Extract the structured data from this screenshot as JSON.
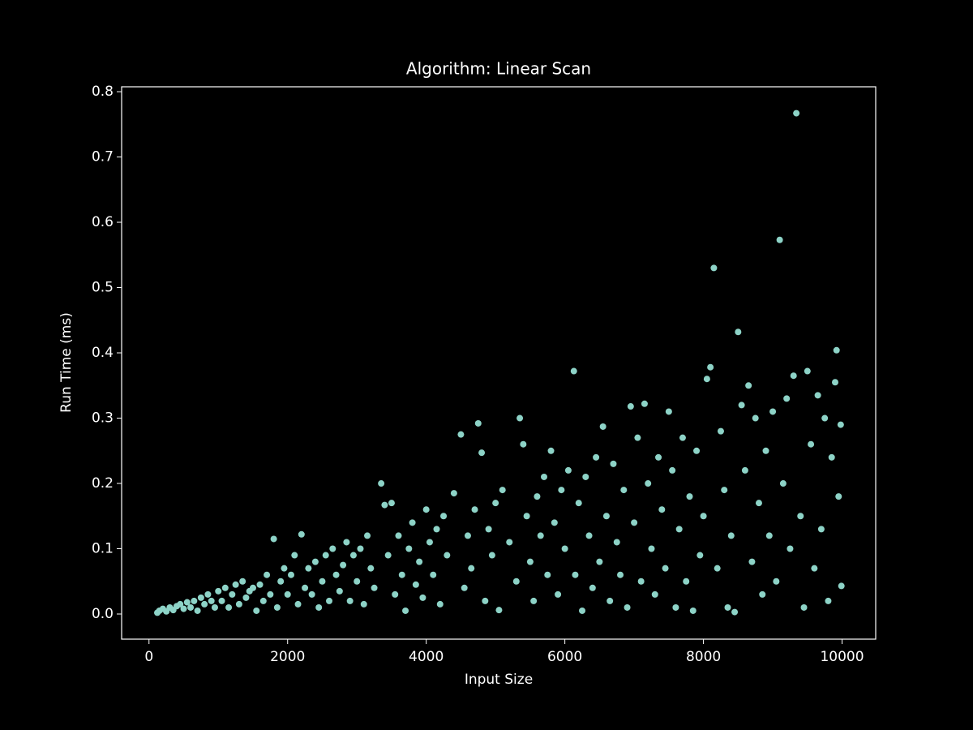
{
  "chart_data": {
    "type": "scatter",
    "title": "Algorithm: Linear Scan",
    "x_label": "Input Size",
    "y_label": "Run Time (ms)",
    "color": "#8dd3c7",
    "xlim": [
      -395,
      10485
    ],
    "ylim": [
      -0.0385,
      0.8075
    ],
    "xticks": [
      0,
      2000,
      4000,
      6000,
      8000,
      10000
    ],
    "yticks": [
      {
        "value": 0,
        "label": "0.0"
      },
      0.1,
      0.2,
      0.3,
      0.4,
      0.5,
      0.6,
      0.7,
      0.8
    ],
    "x": [
      120,
      150,
      200,
      250,
      300,
      350,
      400,
      450,
      500,
      550,
      600,
      650,
      700,
      750,
      800,
      850,
      900,
      950,
      1000,
      1050,
      1100,
      1150,
      1200,
      1250,
      1300,
      1350,
      1400,
      1450,
      1500,
      1550,
      1600,
      1650,
      1700,
      1750,
      1800,
      1850,
      1900,
      1950,
      2000,
      2050,
      2100,
      2150,
      2200,
      2250,
      2300,
      2350,
      2400,
      2450,
      2500,
      2550,
      2600,
      2650,
      2700,
      2750,
      2800,
      2850,
      2900,
      2950,
      3000,
      3050,
      3100,
      3150,
      3200,
      3250,
      3350,
      3400,
      3450,
      3500,
      3550,
      3600,
      3650,
      3700,
      3750,
      3800,
      3850,
      3900,
      3950,
      4000,
      4050,
      4100,
      4150,
      4200,
      4250,
      4300,
      4400,
      4500,
      4550,
      4600,
      4650,
      4700,
      4750,
      4800,
      4850,
      4900,
      4950,
      5000,
      5050,
      5100,
      5200,
      5300,
      5350,
      5400,
      5450,
      5500,
      5550,
      5600,
      5650,
      5700,
      5750,
      5800,
      5850,
      5900,
      5950,
      6000,
      6050,
      6130,
      6150,
      6200,
      6250,
      6300,
      6350,
      6400,
      6450,
      6500,
      6550,
      6600,
      6650,
      6700,
      6750,
      6800,
      6850,
      6900,
      6950,
      7000,
      7050,
      7100,
      7150,
      7200,
      7250,
      7300,
      7350,
      7400,
      7450,
      7500,
      7550,
      7600,
      7650,
      7700,
      7750,
      7800,
      7850,
      7900,
      7950,
      8000,
      8050,
      8100,
      8150,
      8200,
      8250,
      8300,
      8350,
      8400,
      8450,
      8500,
      8550,
      8600,
      8650,
      8700,
      8750,
      8800,
      8850,
      8900,
      8950,
      9000,
      9050,
      9100,
      9150,
      9200,
      9250,
      9300,
      9340,
      9400,
      9450,
      9500,
      9550,
      9600,
      9650,
      9700,
      9750,
      9800,
      9850,
      9900,
      9920,
      9950,
      9980,
      9990
    ],
    "values": [
      0.002,
      0.005,
      0.008,
      0.004,
      0.01,
      0.006,
      0.012,
      0.015,
      0.008,
      0.018,
      0.01,
      0.02,
      0.005,
      0.025,
      0.015,
      0.03,
      0.02,
      0.01,
      0.035,
      0.02,
      0.04,
      0.01,
      0.03,
      0.045,
      0.015,
      0.05,
      0.025,
      0.035,
      0.04,
      0.005,
      0.045,
      0.02,
      0.06,
      0.03,
      0.115,
      0.01,
      0.05,
      0.07,
      0.03,
      0.06,
      0.09,
      0.015,
      0.122,
      0.04,
      0.07,
      0.03,
      0.08,
      0.01,
      0.05,
      0.09,
      0.02,
      0.1,
      0.06,
      0.035,
      0.075,
      0.11,
      0.02,
      0.09,
      0.05,
      0.1,
      0.015,
      0.12,
      0.07,
      0.04,
      0.2,
      0.167,
      0.09,
      0.17,
      0.03,
      0.12,
      0.06,
      0.005,
      0.1,
      0.14,
      0.045,
      0.08,
      0.025,
      0.16,
      0.11,
      0.06,
      0.13,
      0.015,
      0.15,
      0.09,
      0.185,
      0.275,
      0.04,
      0.12,
      0.07,
      0.16,
      0.292,
      0.247,
      0.02,
      0.13,
      0.09,
      0.17,
      0.006,
      0.19,
      0.11,
      0.05,
      0.3,
      0.26,
      0.15,
      0.08,
      0.02,
      0.18,
      0.12,
      0.21,
      0.06,
      0.25,
      0.14,
      0.03,
      0.19,
      0.1,
      0.22,
      0.372,
      0.06,
      0.17,
      0.005,
      0.21,
      0.12,
      0.04,
      0.24,
      0.08,
      0.287,
      0.15,
      0.02,
      0.23,
      0.11,
      0.06,
      0.19,
      0.01,
      0.318,
      0.14,
      0.27,
      0.05,
      0.322,
      0.2,
      0.1,
      0.03,
      0.24,
      0.16,
      0.07,
      0.31,
      0.22,
      0.01,
      0.13,
      0.27,
      0.05,
      0.18,
      0.005,
      0.25,
      0.09,
      0.15,
      0.36,
      0.378,
      0.53,
      0.07,
      0.28,
      0.19,
      0.01,
      0.12,
      0.003,
      0.432,
      0.32,
      0.22,
      0.35,
      0.08,
      0.3,
      0.17,
      0.03,
      0.25,
      0.12,
      0.31,
      0.05,
      0.573,
      0.2,
      0.33,
      0.1,
      0.365,
      0.767,
      0.15,
      0.01,
      0.372,
      0.26,
      0.07,
      0.335,
      0.13,
      0.3,
      0.02,
      0.24,
      0.355,
      0.404,
      0.18,
      0.29,
      0.043
    ]
  }
}
